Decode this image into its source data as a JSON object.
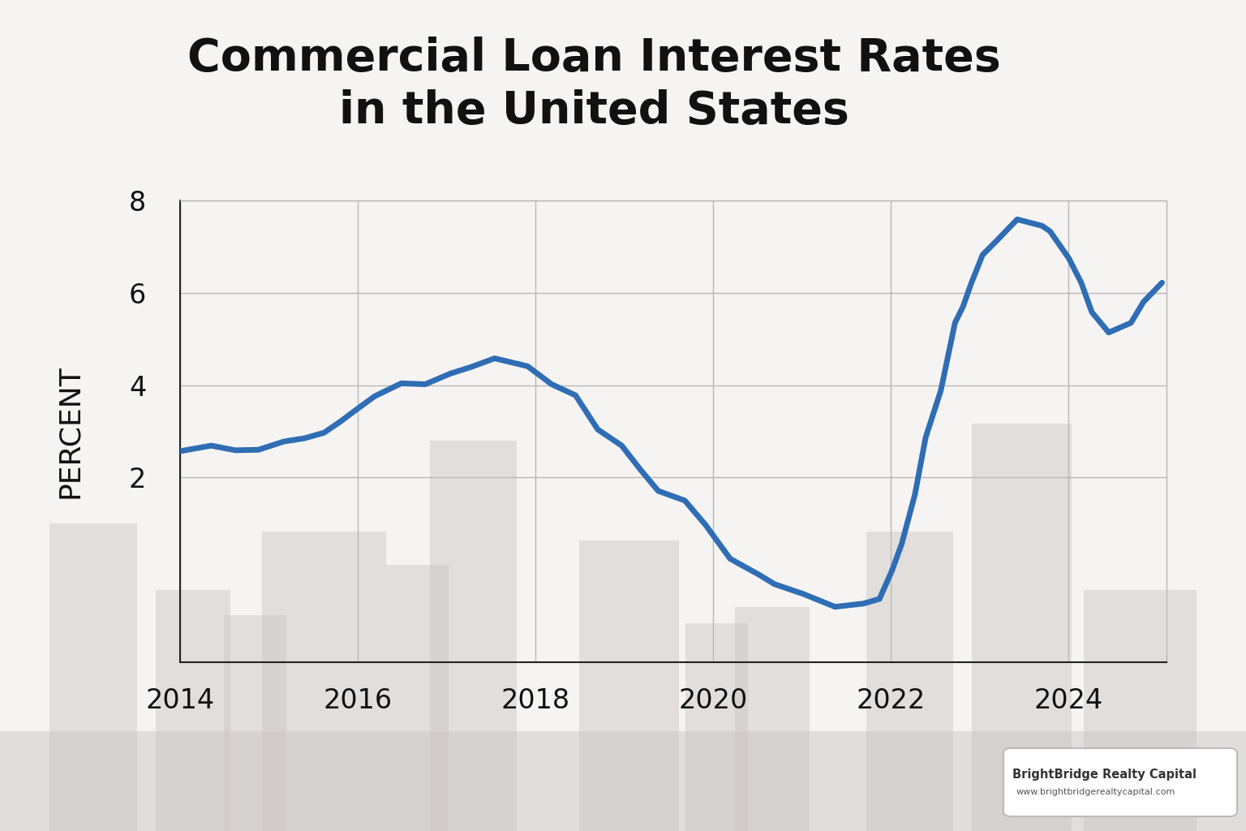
{
  "chart_data": {
    "type": "line",
    "title": "Commercial Loan Interest Rates\nin the United States",
    "y_label": "PERCENT",
    "x": [
      2014.0,
      2014.35,
      2014.62,
      2014.88,
      2015.17,
      2015.4,
      2015.62,
      2015.81,
      2015.99,
      2016.19,
      2016.49,
      2016.76,
      2017.04,
      2017.27,
      2017.54,
      2017.91,
      2018.18,
      2018.45,
      2018.7,
      2018.97,
      2019.18,
      2019.38,
      2019.68,
      2019.91,
      2020.19,
      2020.51,
      2020.69,
      2021.01,
      2021.37,
      2021.69,
      2021.87,
      2022.01,
      2022.12,
      2022.27,
      2022.39,
      2022.56,
      2022.72,
      2022.81,
      2022.9,
      2023.03,
      2023.2,
      2023.42,
      2023.7,
      2023.79,
      2024.0,
      2024.14,
      2024.26,
      2024.45,
      2024.7,
      2024.84,
      2025.05
    ],
    "values": [
      2.57,
      2.69,
      2.59,
      2.6,
      2.78,
      2.85,
      2.97,
      3.22,
      3.48,
      3.76,
      4.04,
      4.02,
      4.25,
      4.39,
      4.58,
      4.41,
      4.02,
      3.78,
      3.04,
      2.69,
      2.17,
      1.71,
      1.5,
      0.98,
      0.24,
      -0.1,
      -0.31,
      -0.52,
      -0.8,
      -0.73,
      -0.63,
      -0.02,
      0.56,
      1.64,
      2.87,
      3.88,
      5.35,
      5.7,
      6.19,
      6.82,
      7.15,
      7.59,
      7.45,
      7.33,
      6.75,
      6.22,
      5.58,
      5.14,
      5.35,
      5.8,
      6.22
    ],
    "color": "#2f6db4",
    "xlim": [
      2014,
      2025.1
    ],
    "xticks": [
      2014,
      2016,
      2018,
      2020,
      2022,
      2024
    ],
    "ylim": [
      -2,
      8
    ],
    "yticks": [
      2,
      4,
      6,
      8
    ],
    "grid": true
  },
  "watermark": {
    "name": "BrightBridge Realty Capital",
    "url": "www.brightbridgerealtycapital.com"
  }
}
